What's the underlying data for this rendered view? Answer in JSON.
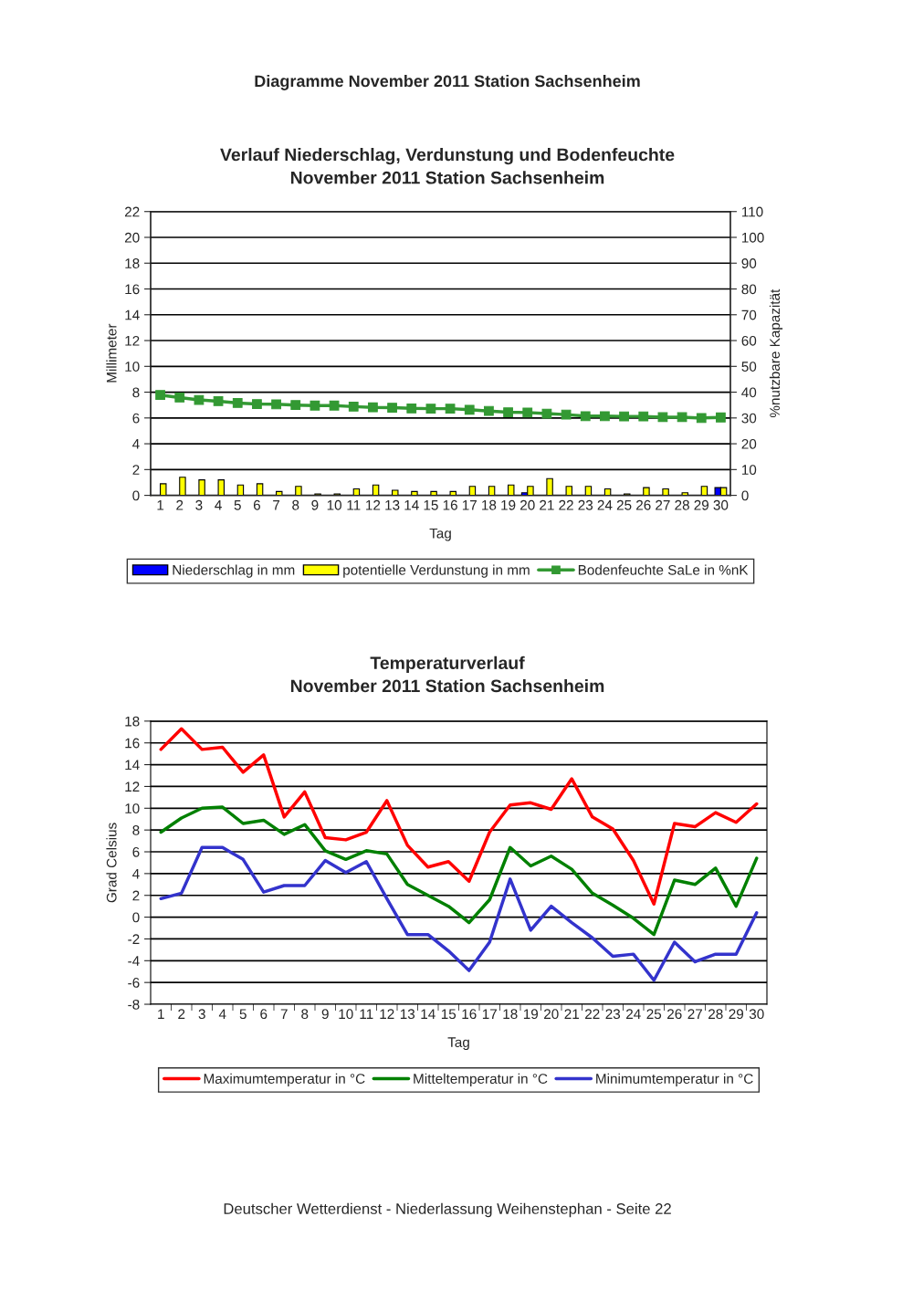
{
  "chart_data": [
    {
      "type": "bar",
      "title": "Verlauf Niederschlag, Verdunstung und Bodenfeuchte\nNovember 2011 Station Sachsenheim",
      "xlabel": "Tag",
      "ylabel": "Millimeter",
      "y2label": "%nutzbare Kapazität",
      "annotations": [
        "Diagramme November 2011 Station Sachsenheim"
      ],
      "categories": [
        "1",
        "2",
        "3",
        "4",
        "5",
        "6",
        "7",
        "8",
        "9",
        "10",
        "11",
        "12",
        "13",
        "14",
        "15",
        "16",
        "17",
        "18",
        "19",
        "20",
        "21",
        "22",
        "23",
        "24",
        "25",
        "26",
        "27",
        "28",
        "29",
        "30"
      ],
      "series": [
        {
          "name": "Niederschlag in mm",
          "type": "bar",
          "color": "#0000ff",
          "values": [
            0,
            0,
            0,
            0,
            0,
            0,
            0,
            0,
            0,
            0,
            0,
            0,
            0,
            0,
            0,
            0,
            0,
            0,
            0,
            0.2,
            0,
            0,
            0,
            0,
            0,
            0,
            0,
            0,
            0,
            0.6
          ]
        },
        {
          "name": "potentielle Verdunstung in mm",
          "type": "bar",
          "color": "#ffff00",
          "values": [
            0.9,
            1.4,
            1.2,
            1.2,
            0.8,
            0.9,
            0.3,
            0.7,
            0.1,
            0.1,
            0.5,
            0.8,
            0.4,
            0.3,
            0.3,
            0.3,
            0.7,
            0.7,
            0.8,
            0.7,
            1.3,
            0.7,
            0.7,
            0.5,
            0.1,
            0.6,
            0.5,
            0.2,
            0.7,
            0.6
          ]
        },
        {
          "name": "Bodenfeuchte SaLe in %nK",
          "type": "line",
          "axis": "y2",
          "marker": "square",
          "color": "#339933",
          "values": [
            38.9,
            37.9,
            37.0,
            36.5,
            35.8,
            35.4,
            35.3,
            35.0,
            34.8,
            34.8,
            34.4,
            34.1,
            34.0,
            33.7,
            33.6,
            33.6,
            33.2,
            32.7,
            32.2,
            32.1,
            31.7,
            31.3,
            30.7,
            30.7,
            30.6,
            30.6,
            30.3,
            30.3,
            30.0,
            30.2
          ]
        }
      ],
      "ylim": [
        0,
        22
      ],
      "yticks": [
        0,
        2,
        4,
        6,
        8,
        10,
        12,
        14,
        16,
        18,
        20,
        22
      ],
      "y2lim": [
        0,
        110
      ],
      "y2ticks": [
        0,
        10,
        20,
        30,
        40,
        50,
        60,
        70,
        80,
        90,
        100,
        110
      ],
      "grid": "y",
      "legend": "bottom",
      "line_style": "solid"
    },
    {
      "type": "line",
      "title": "Temperaturverlauf\nNovember 2011 Station Sachsenheim",
      "xlabel": "Tag",
      "ylabel": "Grad Celsius",
      "annotations": [
        "Deutscher Wetterdienst - Niederlassung Weihenstephan - Seite 22"
      ],
      "categories": [
        "1",
        "2",
        "3",
        "4",
        "5",
        "6",
        "7",
        "8",
        "9",
        "10",
        "11",
        "12",
        "13",
        "14",
        "15",
        "16",
        "17",
        "18",
        "19",
        "20",
        "21",
        "22",
        "23",
        "24",
        "25",
        "26",
        "27",
        "28",
        "29",
        "30"
      ],
      "series": [
        {
          "name": "Maximumtemperatur in °C",
          "color": "#ff0000",
          "values": [
            15.4,
            17.3,
            15.4,
            15.6,
            13.3,
            14.9,
            9.2,
            11.5,
            7.3,
            7.1,
            7.8,
            10.7,
            6.6,
            4.6,
            5.1,
            3.3,
            7.8,
            10.3,
            10.5,
            9.9,
            12.7,
            9.2,
            8.1,
            5.2,
            1.2,
            8.6,
            8.3,
            9.6,
            8.7,
            10.4
          ]
        },
        {
          "name": "Mitteltemperatur in °C",
          "color": "#008000",
          "values": [
            7.8,
            9.1,
            10.0,
            10.1,
            8.6,
            8.9,
            7.6,
            8.5,
            6.1,
            5.3,
            6.1,
            5.8,
            3.0,
            2.0,
            1.0,
            -0.5,
            1.6,
            6.4,
            4.7,
            5.6,
            4.4,
            2.2,
            1.1,
            -0.1,
            -1.6,
            3.4,
            3.0,
            4.5,
            1.0,
            5.4
          ]
        },
        {
          "name": "Minimumtemperatur in °C",
          "color": "#3333cc",
          "values": [
            1.7,
            2.2,
            6.4,
            6.4,
            5.3,
            2.3,
            2.9,
            2.9,
            5.2,
            4.1,
            5.1,
            1.7,
            -1.6,
            -1.6,
            -3.1,
            -4.9,
            -2.3,
            3.5,
            -1.2,
            1.0,
            -0.5,
            -1.9,
            -3.6,
            -3.4,
            -5.8,
            -2.3,
            -4.1,
            -3.4,
            -3.4,
            0.4
          ]
        }
      ],
      "ylim": [
        -8,
        18
      ],
      "yticks": [
        -8,
        -6,
        -4,
        -2,
        0,
        2,
        4,
        6,
        8,
        10,
        12,
        14,
        16,
        18
      ],
      "grid": "y",
      "legend": "bottom",
      "marker": "none",
      "line_style": "solid"
    }
  ]
}
